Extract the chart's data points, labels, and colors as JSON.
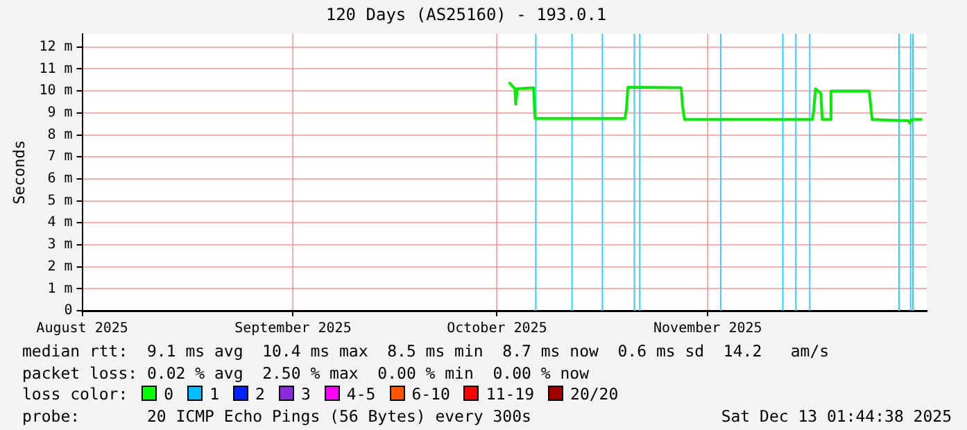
{
  "chart_data": {
    "type": "line",
    "title": "120 Days (AS25160) - 193.0.1",
    "ylabel": "Seconds",
    "x": [
      "2025-10-02T18:00",
      "2025-10-03T15:00",
      "2025-10-03T18:00",
      "2025-10-04T00:00",
      "2025-10-06T09:00",
      "2025-10-06T14:00",
      "2025-10-19T20:00",
      "2025-10-20T01:00",
      "2025-10-20T06:00",
      "2025-10-28T02:00",
      "2025-10-28T07:00",
      "2025-10-28T14:00",
      "2025-11-16T09:00",
      "2025-11-16T14:00",
      "2025-11-16T20:00",
      "2025-11-17T15:00",
      "2025-11-17T20:00",
      "2025-11-18T23:00",
      "2025-11-19T03:00",
      "2025-11-24T18:00",
      "2025-11-25T00:00",
      "2025-11-25T04:00",
      "2025-11-30T12:00",
      "2025-11-30T17:00",
      "2025-11-30T23:00",
      "2025-12-02T13:00"
    ],
    "series": [
      {
        "color": "#00ee00",
        "values": [
          10.4,
          10.1,
          9.4,
          10.1,
          10.15,
          8.75,
          8.75,
          9.2,
          10.17,
          10.15,
          9.3,
          8.7,
          8.7,
          9.1,
          10.1,
          9.9,
          8.7,
          8.7,
          10.0,
          10.0,
          9.2,
          8.7,
          8.65,
          8.55,
          8.7,
          8.7
        ]
      }
    ],
    "xlim": [
      "2025-08-01",
      "2025-12-03T05:00"
    ],
    "xticks": [
      {
        "value": "2025-08-01",
        "label": "August 2025"
      },
      {
        "value": "2025-09-01",
        "label": "September 2025"
      },
      {
        "value": "2025-10-01",
        "label": "October 2025"
      },
      {
        "value": "2025-11-01",
        "label": "November 2025"
      }
    ],
    "ylim": [
      0,
      12.6
    ],
    "yticks": [
      0,
      {
        "value": 1,
        "label": "1 m"
      },
      {
        "value": 2,
        "label": "2 m"
      },
      {
        "value": 3,
        "label": "3 m"
      },
      {
        "value": 4,
        "label": "4 m"
      },
      {
        "value": 5,
        "label": "5 m"
      },
      {
        "value": 6,
        "label": "6 m"
      },
      {
        "value": 7,
        "label": "7 m"
      },
      {
        "value": 8,
        "label": "8 m"
      },
      {
        "value": 9,
        "label": "9 m"
      },
      {
        "value": 10,
        "label": "10 m"
      },
      {
        "value": 11,
        "label": "11 m"
      },
      {
        "value": 12,
        "label": "12 m"
      }
    ],
    "ref_lines": [
      {
        "axis": "x",
        "value": "2025-10-06T17:00",
        "color": "#33ccff"
      },
      {
        "axis": "x",
        "value": "2025-10-12T01:00",
        "color": "#33ccff"
      },
      {
        "axis": "x",
        "value": "2025-10-16T12:00",
        "color": "#33ccff"
      },
      {
        "axis": "x",
        "value": "2025-10-21T05:00",
        "color": "#33ccff"
      },
      {
        "axis": "x",
        "value": "2025-10-22T00:00",
        "color": "#33ccff"
      },
      {
        "axis": "x",
        "value": "2025-11-02T22:00",
        "color": "#33ccff"
      },
      {
        "axis": "x",
        "value": "2025-11-12T01:00",
        "color": "#33ccff"
      },
      {
        "axis": "x",
        "value": "2025-11-13T23:00",
        "color": "#33ccff"
      },
      {
        "axis": "x",
        "value": "2025-11-16T00:00",
        "color": "#33ccff"
      },
      {
        "axis": "x",
        "value": "2025-11-29T03:00",
        "color": "#33ccff"
      },
      {
        "axis": "x",
        "value": "2025-11-30T20:00",
        "color": "#33ccff"
      },
      {
        "axis": "x",
        "value": "2025-12-01T04:00",
        "color": "#33ccff"
      }
    ],
    "annotations": [
      "median rtt:  9.1 ms avg  10.4 ms max  8.5 ms min  8.7 ms now  0.6 ms sd  14.2   am/s",
      "packet loss: 0.02 % avg  2.50 % max  0.00 % min  0.00 % now",
      "loss color:",
      "0",
      "1",
      "2",
      "3",
      "4-5",
      "6-10",
      "11-19",
      "20/20",
      "probe:       20 ICMP Echo Pings (56 Bytes) every 300s",
      "Sat Dec 13 01:44:38 2025"
    ],
    "grid": true,
    "legend": false,
    "marker": "none",
    "line_style": "solid"
  }
}
